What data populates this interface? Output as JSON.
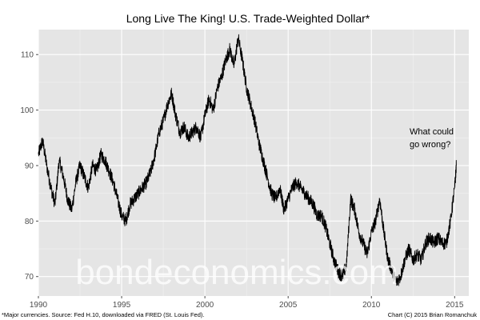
{
  "chart_data": {
    "type": "line",
    "title": "Long Live The King! U.S. Trade-Weighted Dollar*",
    "xlabel": "",
    "ylabel": "",
    "xlim": [
      1990.0,
      2015.85
    ],
    "ylim": [
      66.5,
      114.5
    ],
    "x_ticks": [
      "1990",
      "1995",
      "2000",
      "2005",
      "2010",
      "2015"
    ],
    "y_ticks": [
      "70",
      "80",
      "90",
      "100",
      "110"
    ],
    "grid": true,
    "legend": "none",
    "line_color": "#000000",
    "panel_color": "#e5e5e5",
    "annotation": [
      "What could",
      "go wrong?"
    ],
    "series": [
      {
        "x": [
          1990.0,
          1990.25,
          1990.5,
          1990.75,
          1991.0,
          1991.25,
          1991.5,
          1991.75,
          1992.0,
          1992.25,
          1992.5,
          1992.75,
          1993.0,
          1993.25,
          1993.5,
          1993.75,
          1994.0,
          1994.25,
          1994.5,
          1994.75,
          1995.0,
          1995.25,
          1995.5,
          1995.75,
          1996.0,
          1996.25,
          1996.5,
          1996.75,
          1997.0,
          1997.25,
          1997.5,
          1997.75,
          1998.0,
          1998.25,
          1998.5,
          1998.75,
          1999.0,
          1999.25,
          1999.5,
          1999.75,
          2000.0,
          2000.25,
          2000.5,
          2000.75,
          2001.0,
          2001.25,
          2001.5,
          2001.75,
          2002.0,
          2002.25,
          2002.5,
          2002.75,
          2003.0,
          2003.25,
          2003.5,
          2003.75,
          2004.0,
          2004.25,
          2004.5,
          2004.75,
          2005.0,
          2005.25,
          2005.5,
          2005.75,
          2006.0,
          2006.25,
          2006.5,
          2006.75,
          2007.0,
          2007.25,
          2007.5,
          2007.75,
          2008.0,
          2008.25,
          2008.5,
          2008.75,
          2009.0,
          2009.25,
          2009.5,
          2009.75,
          2010.0,
          2010.25,
          2010.5,
          2010.75,
          2011.0,
          2011.25,
          2011.5,
          2011.75,
          2012.0,
          2012.25,
          2012.5,
          2012.75,
          2013.0,
          2013.25,
          2013.5,
          2013.75,
          2014.0,
          2014.25,
          2014.5,
          2014.75,
          2015.0,
          2015.1
        ],
        "y": [
          92,
          94.5,
          90,
          86,
          83,
          91,
          88,
          84,
          82,
          87,
          90,
          88,
          86,
          90,
          89,
          92,
          91,
          89,
          87,
          84,
          81,
          80,
          83,
          84,
          85,
          86,
          87,
          89,
          92,
          96,
          98,
          101,
          103,
          99,
          96,
          97,
          95,
          96,
          97,
          95,
          99,
          102,
          100,
          104,
          106,
          109,
          111,
          108,
          113,
          109,
          104,
          101,
          98,
          94,
          91,
          88,
          85,
          84,
          86,
          82,
          84,
          86,
          87,
          86,
          85,
          84,
          83,
          81,
          81,
          79,
          76,
          73,
          71,
          70,
          72,
          84,
          82,
          78,
          76,
          74,
          78,
          80,
          84,
          78,
          73,
          71,
          69,
          70,
          73,
          75,
          73,
          74,
          73,
          76,
          77,
          76,
          77,
          76,
          76,
          80,
          86,
          90
        ]
      }
    ]
  },
  "watermark": "bondeconomics.com",
  "footer": {
    "left": "*Major currencies. Source: Fed H.10, downloaded via FRED (St. Louis Fed).",
    "right": "Chart (C) 2015 Brian Romanchuk"
  }
}
